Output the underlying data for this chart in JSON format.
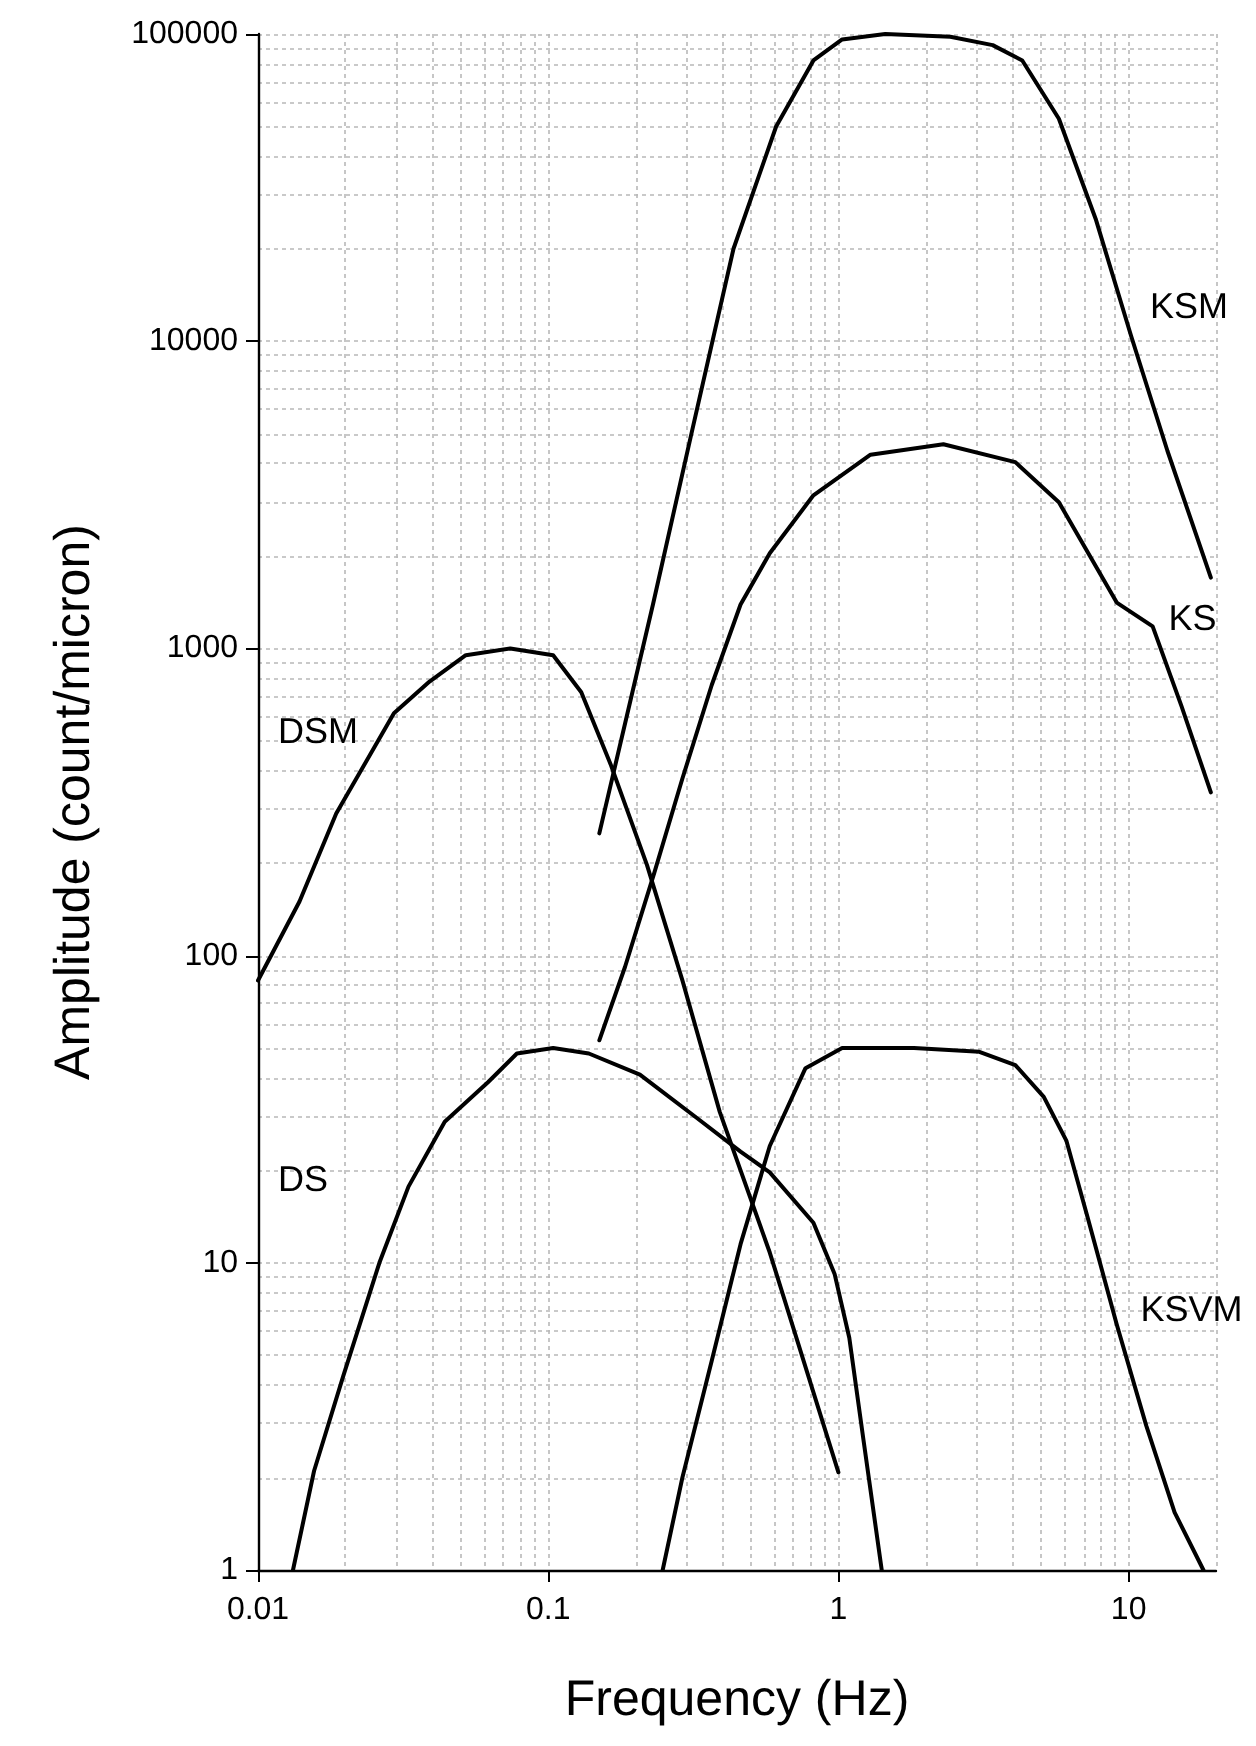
{
  "chart_data": {
    "type": "line",
    "xlabel": "Frequency (Hz)",
    "ylabel": "Amplitude (count/micron)",
    "log": "xy",
    "grid": true,
    "marker": "none",
    "line_style": "solid",
    "xlim": [
      0.01,
      20
    ],
    "xticks": [
      0.01,
      0.1,
      1,
      10
    ],
    "ylim": [
      1,
      100000
    ],
    "yticks": [
      1,
      10,
      100,
      1000,
      10000,
      100000
    ],
    "series": [
      {
        "name": "KSM",
        "color": "#000000",
        "x": [
          0.15,
          0.23,
          0.31,
          0.435,
          0.61,
          0.82,
          1.03,
          1.45,
          2.43,
          3.4,
          4.3,
          5.75,
          7.7,
          10.2,
          13.6,
          19.2
        ],
        "values": [
          250,
          1400,
          4900,
          20000,
          50000,
          82000,
          96000,
          100000,
          98000,
          92000,
          82000,
          53000,
          25000,
          10400,
          4400,
          1700
        ]
      },
      {
        "name": "KS",
        "color": "#000000",
        "x": [
          0.15,
          0.184,
          0.232,
          0.29,
          0.366,
          0.46,
          0.58,
          0.82,
          1.29,
          2.3,
          4.07,
          5.75,
          9.1,
          12.1,
          15.2,
          19.2
        ],
        "values": [
          53,
          92,
          186,
          377,
          760,
          1390,
          2040,
          3150,
          4270,
          4620,
          4040,
          2990,
          1410,
          1180,
          650,
          340
        ]
      },
      {
        "name": "DSM",
        "color": "#000000",
        "x": [
          0.01,
          0.0139,
          0.0186,
          0.0294,
          0.039,
          0.052,
          0.074,
          0.104,
          0.13,
          0.164,
          0.219,
          0.29,
          0.39,
          0.58,
          1.0
        ],
        "values": [
          83,
          150,
          290,
          615,
          780,
          950,
          1000,
          950,
          720,
          420,
          197,
          83,
          31,
          10.8,
          2.08
        ]
      },
      {
        "name": "DS",
        "color": "#000000",
        "x": [
          0.0132,
          0.0156,
          0.0197,
          0.0262,
          0.033,
          0.044,
          0.062,
          0.078,
          0.104,
          0.138,
          0.207,
          0.327,
          0.46,
          0.58,
          0.82,
          0.97,
          1.09,
          1.22,
          1.41
        ],
        "values": [
          1,
          2.1,
          4.3,
          10,
          17.7,
          28.8,
          38.7,
          48,
          50,
          48,
          41,
          29.5,
          23,
          19.7,
          13.5,
          9.2,
          5.7,
          2.65,
          1
        ]
      },
      {
        "name": "KSVM",
        "color": "#000000",
        "x": [
          0.248,
          0.29,
          0.366,
          0.46,
          0.58,
          0.77,
          1.03,
          1.82,
          3.06,
          4.07,
          5.1,
          6.1,
          7.2,
          9.1,
          11.5,
          14.4,
          18.1
        ],
        "values": [
          1,
          2.0,
          4.8,
          11.5,
          24,
          43,
          50,
          50,
          48.6,
          44,
          34.7,
          25,
          14.2,
          6.3,
          2.95,
          1.54,
          1
        ]
      }
    ]
  }
}
